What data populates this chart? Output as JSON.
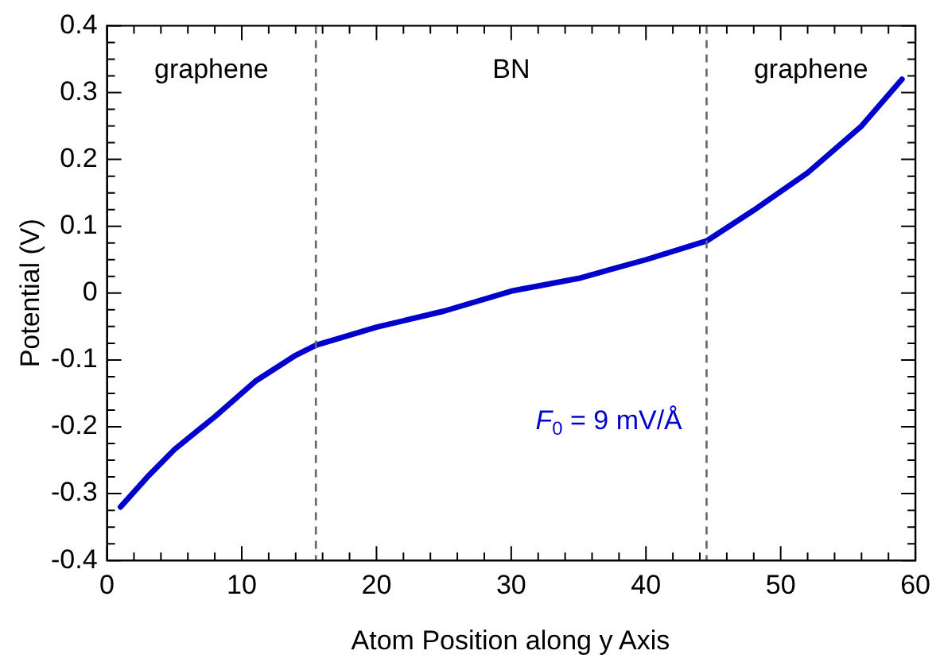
{
  "chart_data": {
    "type": "line",
    "xlabel": "Atom Position along y Axis",
    "ylabel": "Potential (V)",
    "x": [
      1,
      3,
      5,
      8,
      11,
      14,
      15.5,
      20,
      25,
      30,
      35,
      40,
      44.5,
      48,
      52,
      56,
      59
    ],
    "series": [
      {
        "color": "#0000cc",
        "values": [
          -0.32,
          -0.275,
          -0.234,
          -0.185,
          -0.132,
          -0.093,
          -0.078,
          -0.051,
          -0.027,
          0.003,
          0.022,
          0.05,
          0.078,
          0.124,
          0.18,
          0.25,
          0.32
        ]
      }
    ],
    "xlim": [
      0,
      60
    ],
    "xticks": [
      0,
      {
        "value": 2,
        "label": null
      },
      {
        "value": 4,
        "label": null
      },
      {
        "value": 6,
        "label": null
      },
      {
        "value": 8,
        "label": null
      },
      10,
      {
        "value": 12,
        "label": null
      },
      {
        "value": 14,
        "label": null
      },
      {
        "value": 16,
        "label": null
      },
      {
        "value": 18,
        "label": null
      },
      20,
      {
        "value": 22,
        "label": null
      },
      {
        "value": 24,
        "label": null
      },
      {
        "value": 26,
        "label": null
      },
      {
        "value": 28,
        "label": null
      },
      30,
      {
        "value": 32,
        "label": null
      },
      {
        "value": 34,
        "label": null
      },
      {
        "value": 36,
        "label": null
      },
      {
        "value": 38,
        "label": null
      },
      40,
      {
        "value": 42,
        "label": null
      },
      {
        "value": 44,
        "label": null
      },
      {
        "value": 46,
        "label": null
      },
      {
        "value": 48,
        "label": null
      },
      50,
      {
        "value": 52,
        "label": null
      },
      {
        "value": 54,
        "label": null
      },
      {
        "value": 56,
        "label": null
      },
      {
        "value": 58,
        "label": null
      },
      60
    ],
    "ylim": [
      -0.4,
      0.4
    ],
    "yticks": [
      -0.4,
      {
        "value": -0.375,
        "label": null
      },
      {
        "value": -0.35,
        "label": null
      },
      {
        "value": -0.325,
        "label": null
      },
      -0.3,
      {
        "value": -0.275,
        "label": null
      },
      {
        "value": -0.25,
        "label": null
      },
      {
        "value": -0.225,
        "label": null
      },
      -0.2,
      {
        "value": -0.175,
        "label": null
      },
      {
        "value": -0.15,
        "label": null
      },
      {
        "value": -0.125,
        "label": null
      },
      -0.1,
      {
        "value": -0.075,
        "label": null
      },
      {
        "value": -0.05,
        "label": null
      },
      {
        "value": -0.025,
        "label": null
      },
      0,
      {
        "value": 0.025,
        "label": null
      },
      {
        "value": 0.05,
        "label": null
      },
      {
        "value": 0.075,
        "label": null
      },
      0.1,
      {
        "value": 0.125,
        "label": null
      },
      {
        "value": 0.15,
        "label": null
      },
      {
        "value": 0.175,
        "label": null
      },
      0.2,
      {
        "value": 0.225,
        "label": null
      },
      {
        "value": 0.25,
        "label": null
      },
      {
        "value": 0.275,
        "label": null
      },
      0.3,
      {
        "value": 0.325,
        "label": null
      },
      {
        "value": 0.35,
        "label": null
      },
      {
        "value": 0.375,
        "label": null
      },
      0.4
    ],
    "ref_lines": [
      {
        "axis": "x",
        "value": 15.5,
        "color": "#666666",
        "line_style": "dashed"
      },
      {
        "axis": "x",
        "value": 44.5,
        "color": "#666666",
        "line_style": "dashed"
      }
    ],
    "annotations": [
      "graphene",
      "BN",
      "graphene",
      "F$_{0}$ = 9 mV/Å"
    ],
    "grid": false,
    "legend": false,
    "marker": "none",
    "line_style": "solid"
  }
}
